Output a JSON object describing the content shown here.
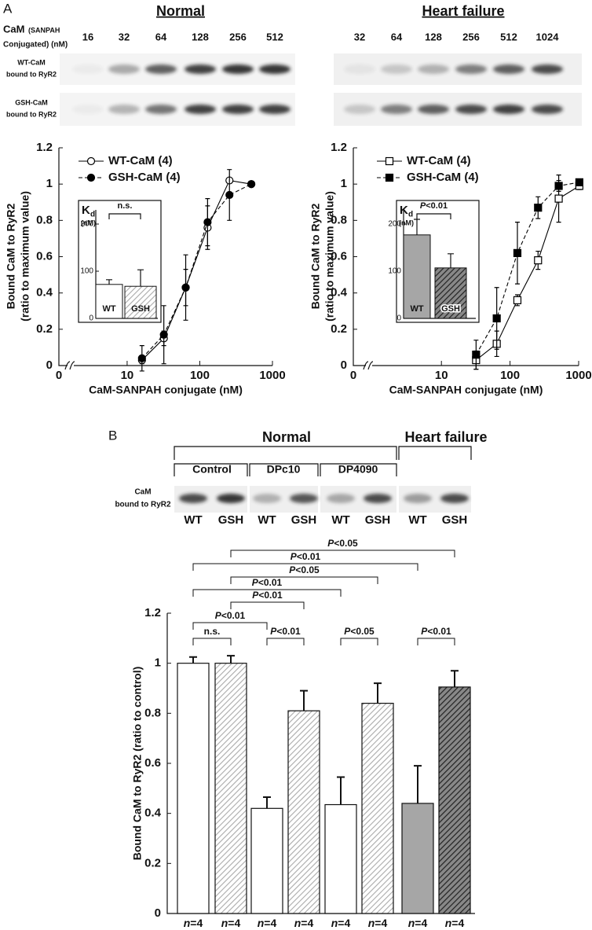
{
  "figure": {
    "panel_a_label": "A",
    "normal_title": "Normal",
    "hf_title": "Heart failure",
    "cam_label": "CaM",
    "cam_label_small": "(SANPAH",
    "cam_label_line2": "Conjugated) (nM)",
    "normal_lanes": [
      16,
      32,
      64,
      128,
      256,
      512
    ],
    "hf_lanes": [
      32,
      64,
      128,
      256,
      512,
      1024
    ],
    "blot_rows": [
      [
        "WT-CaM",
        "bound to RyR2"
      ],
      [
        "GSH-CaM",
        "bound to RyR2"
      ]
    ],
    "panel_b_label": "B",
    "b_groups": [
      "Normal",
      "Heart failure"
    ],
    "b_subgroups": [
      "Control",
      "DPc10",
      "DP4090"
    ],
    "b_blot_label": [
      "CaM",
      "bound to RyR2"
    ]
  },
  "chart_data": [
    {
      "type": "line",
      "log_x": true,
      "x": [
        16,
        32,
        64,
        128,
        256,
        512
      ],
      "xlim": [
        1.15,
        1000
      ],
      "xticks": [
        10,
        100,
        1000
      ],
      "x_zero": 0,
      "ylim": [
        0,
        1.2
      ],
      "yticks": [
        0,
        0.2,
        0.4,
        0.6,
        0.8,
        1,
        1.2
      ],
      "xlabel": "CaM-SANPAH conjugate (nM)",
      "ylabel": [
        "Bound CaM to RyR2",
        "(ratio to maximum value)"
      ],
      "series": [
        {
          "name": "WT-CaM (4)",
          "color": "#000000",
          "marker": "circle",
          "filled": false,
          "dashed": false,
          "values": [
            0.03,
            0.15,
            0.43,
            0.76,
            1.02,
            1.0
          ],
          "errors": [
            0.02,
            0.04,
            0.1,
            0.12,
            0,
            0
          ]
        },
        {
          "name": "GSH-CaM (4)",
          "color": "#000000",
          "marker": "circle",
          "filled": true,
          "dashed": true,
          "values": [
            0.04,
            0.17,
            0.43,
            0.79,
            0.94,
            1.0
          ],
          "errors": [
            0.07,
            0.16,
            0.18,
            0.13,
            0.14,
            0
          ]
        }
      ]
    },
    {
      "type": "bar",
      "ylabel": "K",
      "ylabel_sub": "d",
      "yunit": "(nM)",
      "categories": [
        "WT",
        "GSH"
      ],
      "values": [
        72,
        68
      ],
      "errors": [
        10,
        35
      ],
      "ylim": [
        0,
        230
      ],
      "yticks": [
        0,
        100,
        200
      ],
      "fills": [
        "#ffffff",
        "hatch-light"
      ],
      "annotation": "n.s."
    },
    {
      "type": "line",
      "log_x": true,
      "x": [
        32,
        64,
        128,
        256,
        512,
        1024
      ],
      "xlim": [
        0.52,
        1000
      ],
      "xticks": [
        10,
        100,
        1000
      ],
      "x_zero": 0,
      "ylim": [
        0,
        1.2
      ],
      "yticks": [
        0,
        0.2,
        0.4,
        0.6,
        0.8,
        1,
        1.2
      ],
      "xlabel": "CaM-SANPAH conjugate (nM)",
      "ylabel": [
        "Bound CaM to RyR2",
        "(ratio to maximum value)"
      ],
      "series": [
        {
          "name": "WT-CaM (4)",
          "color": "#000000",
          "marker": "square",
          "filled": false,
          "dashed": false,
          "values": [
            0.03,
            0.12,
            0.36,
            0.58,
            0.92,
            0.99
          ],
          "errors": [
            0.05,
            0.07,
            0.03,
            0.05,
            0.13,
            0.02
          ]
        },
        {
          "name": "GSH-CaM (4)",
          "color": "#000000",
          "marker": "square",
          "filled": true,
          "dashed": true,
          "values": [
            0.06,
            0.26,
            0.62,
            0.87,
            0.99,
            1.01
          ],
          "errors": [
            0.08,
            0.17,
            0.17,
            0.06,
            0.03,
            0.01
          ]
        }
      ]
    },
    {
      "type": "bar",
      "ylabel": "K",
      "ylabel_sub": "d",
      "yunit": "(nM)",
      "categories": [
        "WT",
        "GSH"
      ],
      "values": [
        177,
        107
      ],
      "errors": [
        33,
        30
      ],
      "ylim": [
        0,
        230
      ],
      "yticks": [
        0,
        100,
        200
      ],
      "fills": [
        "#a6a6a6",
        "hatch-dark"
      ],
      "annotation": "P<0.01"
    },
    {
      "type": "bar",
      "categories": [
        "WT",
        "GSH",
        "WT",
        "GSH",
        "WT",
        "GSH",
        "WT",
        "GSH"
      ],
      "values": [
        1.0,
        1.0,
        0.42,
        0.81,
        0.435,
        0.84,
        0.44,
        0.905
      ],
      "errors": [
        0.025,
        0.03,
        0.045,
        0.08,
        0.11,
        0.08,
        0.15,
        0.065
      ],
      "fills": [
        "#ffffff",
        "hatch-light",
        "#ffffff",
        "hatch-light",
        "#ffffff",
        "hatch-light",
        "#a6a6a6",
        "hatch-dark"
      ],
      "ylim": [
        0,
        1.2
      ],
      "yticks": [
        0,
        0.2,
        0.4,
        0.6,
        0.8,
        1,
        1.2
      ],
      "ylabel": "Bound CaM to RyR2 (ratio to control)",
      "n_labels": [
        "n=4",
        "n=4",
        "n=4",
        "n=4",
        "n=4",
        "n=4",
        "n=4",
        "n=4"
      ],
      "significance": [
        {
          "pair": [
            0,
            1
          ],
          "label": "n.s."
        },
        {
          "pair": [
            2,
            3
          ],
          "label": "P<0.01"
        },
        {
          "pair": [
            4,
            5
          ],
          "label": "P<0.05"
        },
        {
          "pair": [
            6,
            7
          ],
          "label": "P<0.01"
        },
        {
          "pair": [
            0,
            2
          ],
          "label": "P<0.01"
        },
        {
          "pair": [
            1,
            3
          ],
          "label": "P<0.01"
        },
        {
          "pair": [
            0,
            4
          ],
          "label": "P<0.01"
        },
        {
          "pair": [
            1,
            5
          ],
          "label": "P<0.05"
        },
        {
          "pair": [
            0,
            6
          ],
          "label": "P<0.01"
        },
        {
          "pair": [
            1,
            7
          ],
          "label": "P<0.05"
        }
      ]
    }
  ]
}
